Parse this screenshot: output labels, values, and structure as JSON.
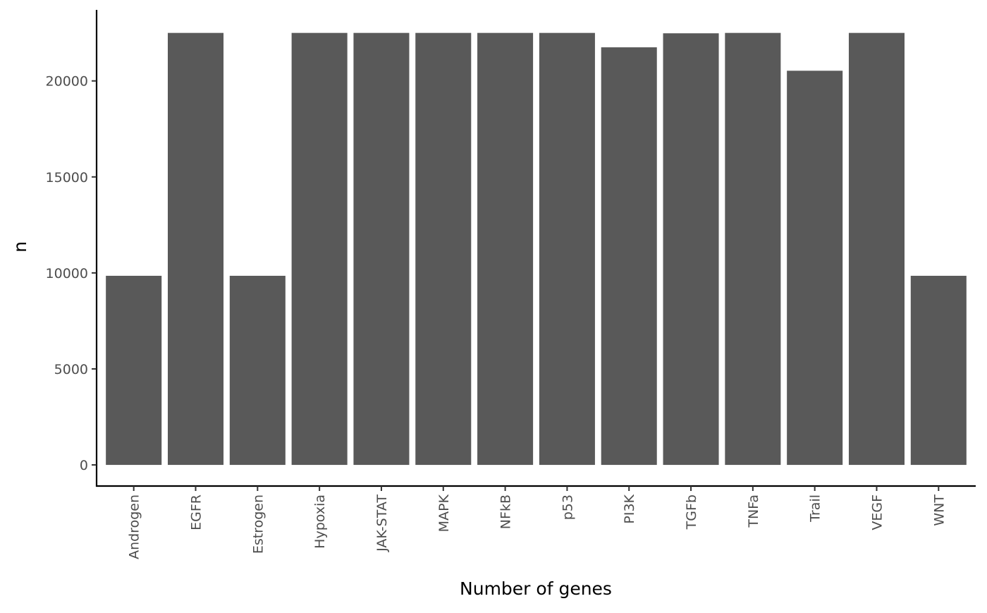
{
  "chart_data": {
    "type": "bar",
    "title": "",
    "xlabel": "Number of genes",
    "ylabel": "n",
    "categories": [
      "Androgen",
      "EGFR",
      "Estrogen",
      "Hypoxia",
      "JAK-STAT",
      "MAPK",
      "NFkB",
      "p53",
      "PI3K",
      "TGFb",
      "TNFa",
      "Trail",
      "VEGF",
      "WNT"
    ],
    "values": [
      9850,
      22500,
      9850,
      22500,
      22500,
      22500,
      22500,
      22500,
      21750,
      22480,
      22500,
      20530,
      22500,
      9850
    ],
    "ylim": [
      -1100,
      23700
    ],
    "yticks": [
      0,
      5000,
      10000,
      15000,
      20000
    ],
    "bar_color": "#595959",
    "grid": false,
    "legend": "none"
  }
}
